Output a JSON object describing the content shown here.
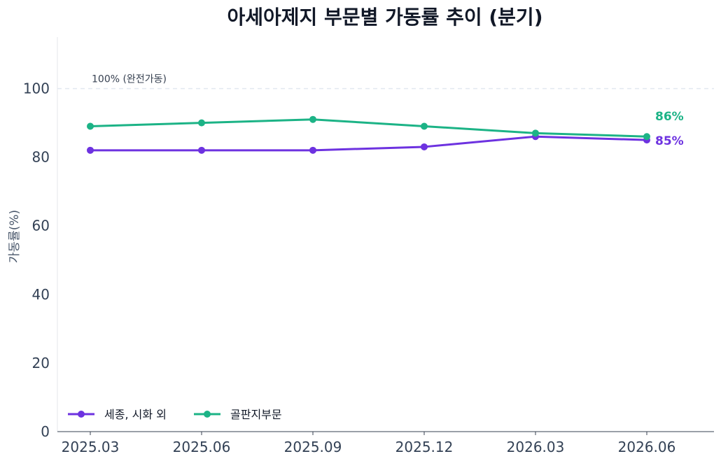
{
  "chart_data": {
    "type": "line",
    "title": "아세아제지 부문별 가동률 추이 (분기)",
    "xlabel": "",
    "ylabel": "가동률(%)",
    "x": [
      "2025.03",
      "2025.06",
      "2025.09",
      "2025.12",
      "2026.03",
      "2026.06"
    ],
    "ylim": [
      0,
      115
    ],
    "yticks": [
      0,
      20,
      40,
      60,
      80,
      100
    ],
    "grid": false,
    "legend_position": "lower-left",
    "series": [
      {
        "name": "세종, 시화 외",
        "color": "#6d32e0",
        "values": [
          82,
          82,
          82,
          83,
          86,
          85
        ],
        "end_label": "85%"
      },
      {
        "name": "골판지부문",
        "color": "#1cb386",
        "values": [
          89,
          90,
          91,
          89,
          87,
          86
        ],
        "end_label": "86%"
      }
    ],
    "reference_line": {
      "value": 100,
      "label": "100% (완전가동)"
    }
  }
}
